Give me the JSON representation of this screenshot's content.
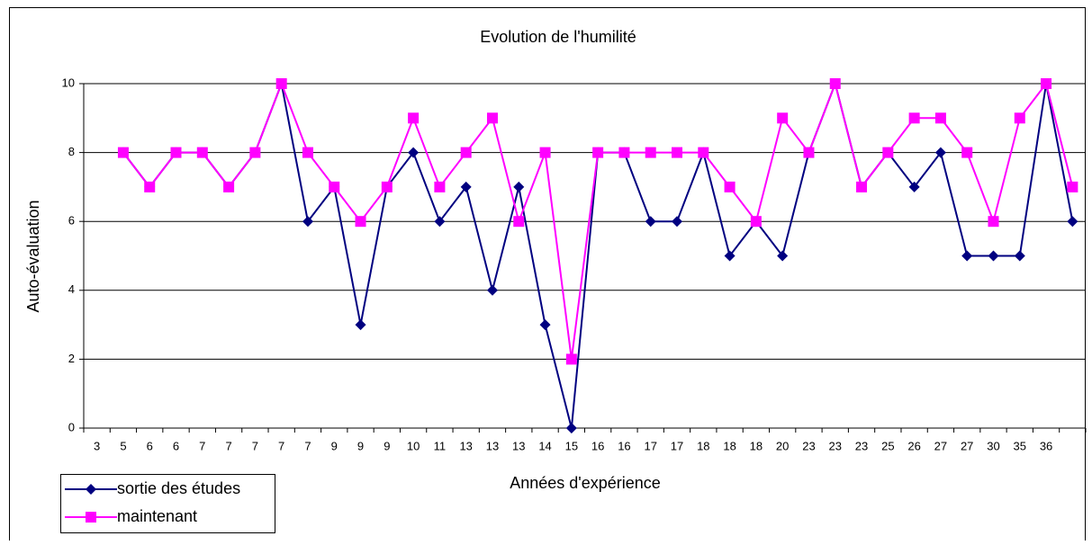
{
  "chart_data": {
    "type": "line",
    "title": "Evolution de l'humilité",
    "x_label": "Années d'expérience",
    "y_label": "Auto-évaluation",
    "categories": [
      "3",
      "5",
      "6",
      "6",
      "7",
      "7",
      "7",
      "7",
      "7",
      "9",
      "9",
      "9",
      "10",
      "11",
      "13",
      "13",
      "13",
      "14",
      "15",
      "16",
      "16",
      "17",
      "17",
      "18",
      "18",
      "18",
      "20",
      "23",
      "23",
      "23",
      "25",
      "26",
      "27",
      "27",
      "30",
      "35",
      "36",
      null
    ],
    "series": [
      {
        "name": "sortie des études",
        "color": "#000080",
        "marker": "diamond",
        "values": [
          null,
          8,
          7,
          8,
          8,
          7,
          8,
          10,
          6,
          7,
          3,
          7,
          8,
          6,
          7,
          4,
          7,
          3,
          0,
          8,
          8,
          6,
          6,
          8,
          5,
          6,
          5,
          8,
          10,
          7,
          8,
          7,
          8,
          5,
          5,
          5,
          10,
          6
        ]
      },
      {
        "name": "maintenant",
        "color": "#ff00ff",
        "marker": "square",
        "values": [
          null,
          8,
          7,
          8,
          8,
          7,
          8,
          10,
          8,
          7,
          6,
          7,
          9,
          7,
          8,
          9,
          6,
          8,
          2,
          8,
          8,
          8,
          8,
          8,
          7,
          6,
          9,
          8,
          10,
          7,
          8,
          9,
          9,
          8,
          6,
          9,
          10,
          7
        ]
      }
    ],
    "ylim": [
      0,
      10
    ],
    "yticks": [
      0,
      2,
      4,
      6,
      8,
      10
    ],
    "grid": true,
    "legend": "bottom-left"
  }
}
